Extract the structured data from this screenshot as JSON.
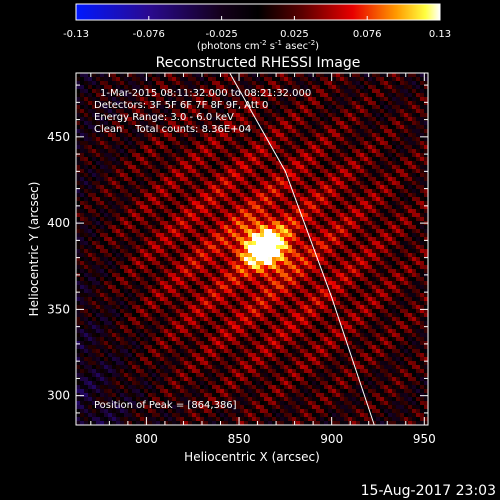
{
  "chart_data": {
    "type": "heatmap",
    "title": "Reconstructed RHESSI Image",
    "xlabel": "Heliocentric X (arcsec)",
    "ylabel": "Heliocentric Y (arcsec)",
    "xlim": [
      762,
      952
    ],
    "ylim": [
      283,
      487
    ],
    "x_ticks": [
      800,
      850,
      900,
      950
    ],
    "y_ticks": [
      300,
      350,
      400,
      450
    ],
    "colorbar": {
      "min": -0.13,
      "max": 0.13,
      "ticks": [
        "-0.13",
        "-0.076",
        "-0.025",
        "0.025",
        "0.076",
        "0.13"
      ],
      "unit_label": "(photons cm",
      "unit_exp1": "-2",
      "unit_mid": " s",
      "unit_exp2": "-1",
      "unit_mid2": " asec",
      "unit_exp3": "-2",
      "unit_end": ")",
      "colormap": "RHESSI blue-black-red-yellow-white"
    },
    "annotations": [
      "1-Mar-2015 08:11:32.000 to 08:21:32.000",
      "Detectors: 3F 5F 6F 7F 8F 9F, Att 0",
      "Energy Range: 3.0 - 6.0 keV",
      "Clean    Total counts: 8.36E+04"
    ],
    "peak_label": "Position of Peak = [864,386]",
    "peak": {
      "x": 864,
      "y": 386,
      "value": 0.13
    },
    "limb": [
      [
        845,
        487
      ],
      [
        875,
        430
      ],
      [
        900,
        357
      ],
      [
        923,
        283
      ]
    ],
    "timestamp": "15-Aug-2017 23:03"
  }
}
